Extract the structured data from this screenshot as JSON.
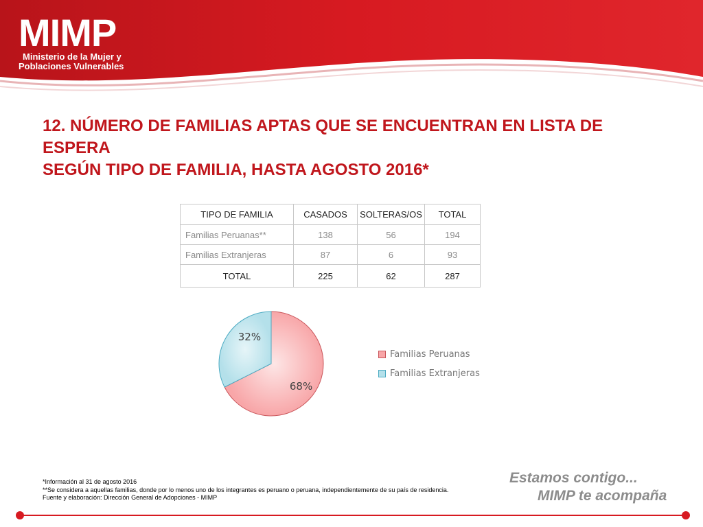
{
  "brand": {
    "logo_text": "MIMP",
    "subtitle_line1": "Ministerio de la Mujer y",
    "subtitle_line2": "Poblaciones Vulnerables",
    "primary_color": "#d71a21",
    "dark_color": "#b8141a"
  },
  "title": {
    "line1": "12. NÚMERO DE FAMILIAS APTAS QUE SE ENCUENTRAN EN LISTA DE ESPERA",
    "line2": "SEGÚN TIPO DE FAMILIA, HASTA AGOSTO 2016*"
  },
  "table": {
    "headers": [
      "TIPO DE FAMILIA",
      "CASADOS",
      "SOLTERAS/OS",
      "TOTAL"
    ],
    "rows": [
      [
        "Familias Peruanas**",
        "138",
        "56",
        "194"
      ],
      [
        "Familias Extranjeras",
        "87",
        "6",
        "93"
      ]
    ],
    "total_row": [
      "TOTAL",
      "225",
      "62",
      "287"
    ]
  },
  "chart_data": {
    "type": "pie",
    "categories": [
      "Familias Peruanas",
      "Familias Extranjeras"
    ],
    "values": [
      194,
      93
    ],
    "data_labels": [
      "68%",
      "32%"
    ],
    "colors": [
      "#f8a6a8",
      "#b4e0ea"
    ],
    "legend_position": "right"
  },
  "notes": [
    "*Información al 31 de agosto 2016",
    "**Se considera a aquellas familias, donde  por lo menos uno de los integrantes es peruano o peruana, independientemente de su país de residencia.",
    "Fuente y elaboración: Dirección General de Adopciones - MIMP"
  ],
  "slogan": {
    "line1": "Estamos contigo...",
    "line2": "MIMP te acompaña",
    "color": "#8c8c8c"
  }
}
